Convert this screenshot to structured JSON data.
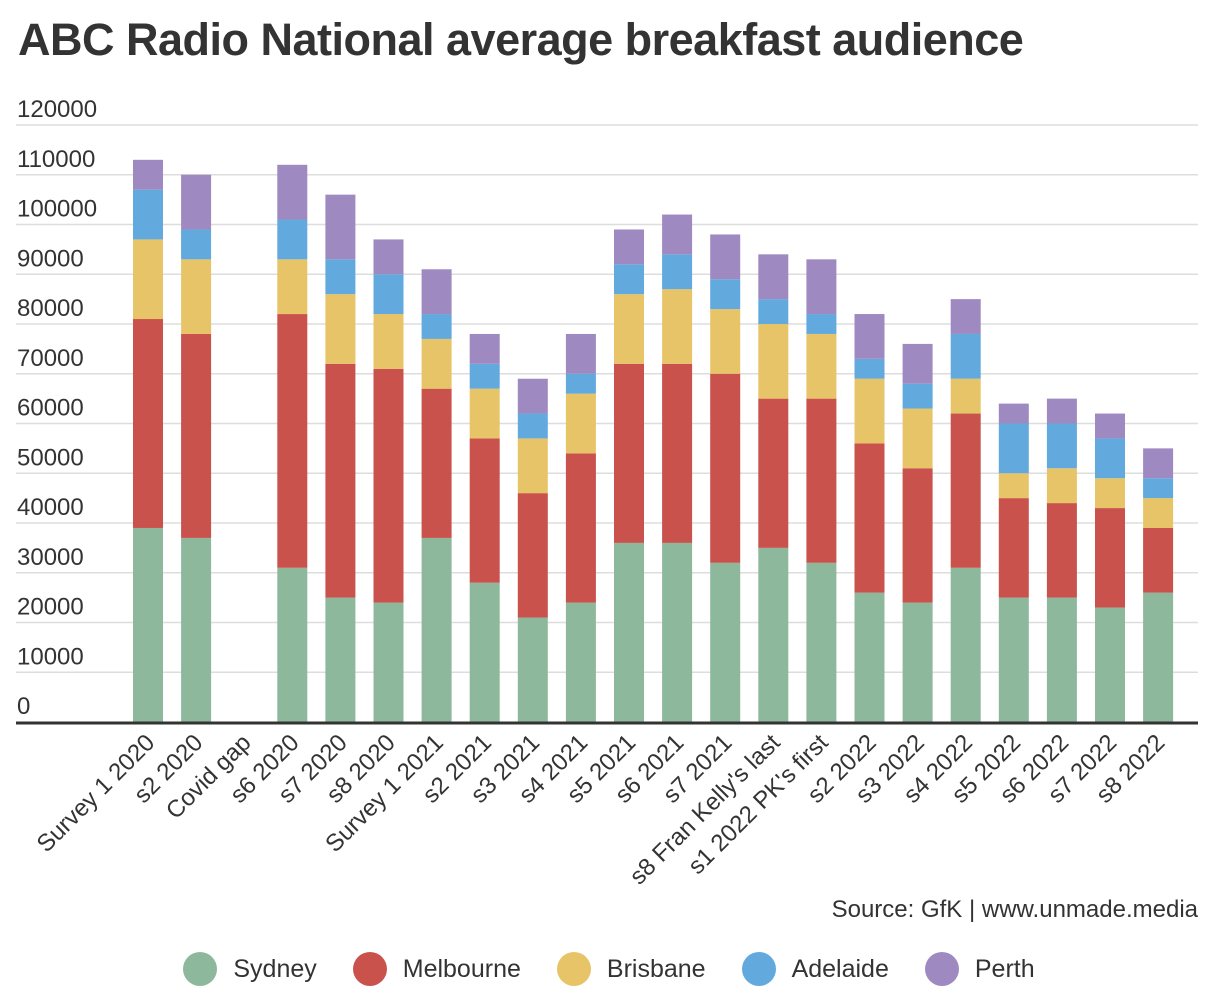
{
  "chart_data": {
    "type": "bar",
    "stacked": true,
    "title": "ABC Radio National average breakfast audience",
    "source": "Source: GfK | www.unmade.media",
    "categories": [
      "Survey 1 2020",
      "s2 2020",
      "Covid gap",
      "s6 2020",
      "s7 2020",
      "s8 2020",
      "Survey 1 2021",
      "s2 2021",
      "s3 2021",
      "s4 2021",
      "s5 2021",
      "s6 2021",
      "s7 2021",
      "s8 Fran Kelly's last",
      "s1 2022 PK's first",
      "s2 2022",
      "s3 2022",
      "s4 2022",
      "s5 2022",
      "s6 2022",
      "s7 2022",
      "s8 2022"
    ],
    "series": [
      {
        "name": "Sydney",
        "color": "#8db89c",
        "values": [
          39000,
          37000,
          0,
          31000,
          25000,
          24000,
          37000,
          28000,
          21000,
          24000,
          36000,
          36000,
          32000,
          35000,
          32000,
          26000,
          24000,
          31000,
          25000,
          25000,
          23000,
          26000
        ]
      },
      {
        "name": "Melbourne",
        "color": "#c9524d",
        "values": [
          42000,
          41000,
          0,
          51000,
          47000,
          47000,
          30000,
          29000,
          25000,
          30000,
          36000,
          36000,
          38000,
          30000,
          33000,
          30000,
          27000,
          31000,
          20000,
          19000,
          20000,
          13000
        ]
      },
      {
        "name": "Brisbane",
        "color": "#e8c468",
        "values": [
          16000,
          15000,
          0,
          11000,
          14000,
          11000,
          10000,
          10000,
          11000,
          12000,
          14000,
          15000,
          13000,
          15000,
          13000,
          13000,
          12000,
          7000,
          5000,
          7000,
          6000,
          6000
        ]
      },
      {
        "name": "Adelaide",
        "color": "#62a9de",
        "values": [
          10000,
          6000,
          0,
          8000,
          7000,
          8000,
          5000,
          5000,
          5000,
          4000,
          6000,
          7000,
          6000,
          5000,
          4000,
          4000,
          5000,
          9000,
          10000,
          9000,
          8000,
          4000
        ]
      },
      {
        "name": "Perth",
        "color": "#9e89c0",
        "values": [
          6000,
          11000,
          0,
          11000,
          13000,
          7000,
          9000,
          6000,
          7000,
          8000,
          7000,
          8000,
          9000,
          9000,
          11000,
          9000,
          8000,
          7000,
          4000,
          5000,
          5000,
          6000
        ]
      }
    ],
    "ylim": [
      0,
      120000
    ],
    "yticks": [
      0,
      10000,
      20000,
      30000,
      40000,
      50000,
      60000,
      70000,
      80000,
      90000,
      100000,
      110000,
      120000
    ],
    "grid": true,
    "legend_position": "bottom-center"
  }
}
